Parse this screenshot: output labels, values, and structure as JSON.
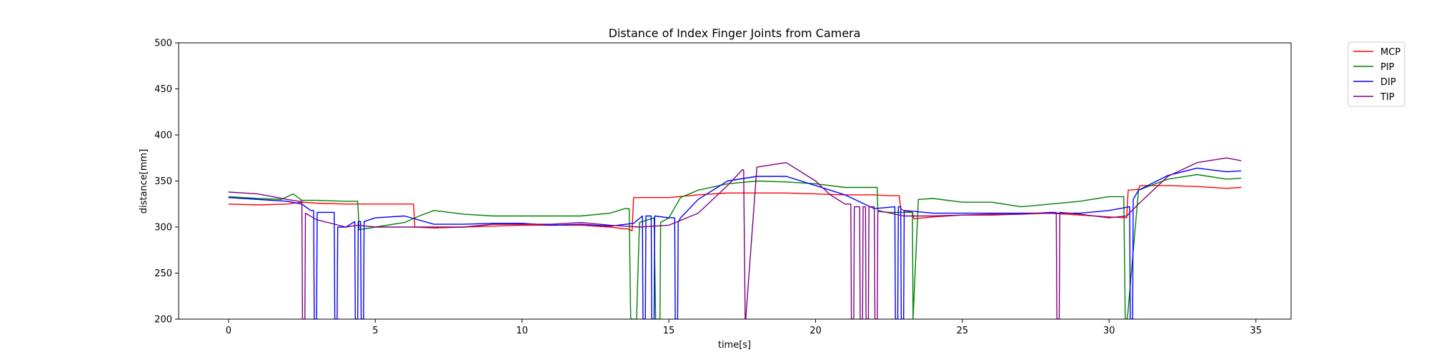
{
  "chart_data": {
    "type": "line",
    "title": "Distance of Index Finger Joints from Camera",
    "xlabel": "time[s]",
    "ylabel": "distance[mm]",
    "xlim": [
      -1.7,
      36.2
    ],
    "ylim": [
      200,
      500
    ],
    "xticks": [
      0,
      5,
      10,
      15,
      20,
      25,
      30,
      35
    ],
    "yticks": [
      200,
      250,
      300,
      350,
      400,
      450,
      500
    ],
    "grid": false,
    "legend_position": "outside-top-right",
    "series": [
      {
        "name": "MCP",
        "color": "#ff0000",
        "x": [
          0,
          1,
          2,
          2.5,
          3,
          4,
          5,
          6,
          6.3,
          6.35,
          7,
          8,
          9,
          10,
          11,
          12,
          13,
          13.5,
          13.6,
          13.75,
          13.8,
          14.5,
          15,
          16,
          17,
          18,
          19,
          20,
          21,
          22,
          22.5,
          22.85,
          22.9,
          23,
          23.3,
          23.35,
          24,
          25,
          26,
          27,
          28,
          29,
          30,
          30.6,
          30.65,
          31,
          31.05,
          32,
          33,
          34,
          34.5
        ],
        "y": [
          325,
          324,
          325,
          327,
          326,
          325,
          325,
          325,
          325,
          300,
          299,
          300,
          301,
          302,
          302,
          302,
          300,
          298,
          298,
          296,
          332,
          332,
          332,
          335,
          337,
          337,
          337,
          336,
          335,
          335,
          334,
          334,
          320,
          318,
          316,
          309,
          311,
          313,
          314,
          314,
          315,
          313,
          311,
          310,
          340,
          341,
          345,
          345,
          344,
          342,
          343
        ]
      },
      {
        "name": "PIP",
        "color": "#008000",
        "x": [
          0,
          1,
          1.8,
          2.2,
          2.5,
          3,
          4,
          4.4,
          4.45,
          5,
          6,
          6.5,
          7,
          8,
          9,
          10,
          11,
          12,
          13,
          13.5,
          13.65,
          13.7,
          13.72,
          13.9,
          14.0,
          14.5,
          14.55,
          14.6,
          14.7,
          14.72,
          15,
          15.4,
          16,
          17,
          18,
          19,
          20,
          21,
          22,
          22.1,
          22.12,
          22.5,
          23,
          23.3,
          23.32,
          23.5,
          24,
          25,
          26,
          27,
          28,
          29,
          30,
          30.5,
          30.55,
          30.6,
          30.62,
          31,
          32,
          33,
          34,
          34.5
        ],
        "y": [
          333,
          331,
          330,
          336,
          329,
          329,
          328,
          328,
          297,
          300,
          305,
          312,
          318,
          314,
          312,
          312,
          312,
          312,
          315,
          320,
          320,
          200,
          200,
          200,
          305,
          310,
          200,
          200,
          200,
          305,
          310,
          332,
          340,
          347,
          350,
          349,
          347,
          343,
          343,
          343,
          317,
          316,
          316,
          316,
          200,
          330,
          331,
          327,
          327,
          322,
          325,
          328,
          333,
          333,
          200,
          200,
          200,
          340,
          352,
          357,
          352,
          353
        ]
      },
      {
        "name": "DIP",
        "color": "#0000ff",
        "x": [
          0,
          1,
          2,
          2.5,
          2.8,
          2.9,
          2.92,
          3.0,
          3.02,
          3.5,
          3.6,
          3.62,
          3.7,
          3.72,
          4.0,
          4.3,
          4.32,
          4.4,
          4.42,
          4.5,
          4.52,
          4.6,
          4.62,
          5,
          6,
          7,
          8,
          9,
          10,
          11,
          12,
          13,
          13.8,
          14.1,
          14.12,
          14.2,
          14.22,
          14.4,
          14.42,
          14.5,
          14.52,
          15.0,
          15.2,
          15.22,
          15.3,
          15.32,
          15.4,
          16,
          17,
          18,
          19,
          20,
          21,
          22,
          22.7,
          22.72,
          22.8,
          22.82,
          22.9,
          22.92,
          23.0,
          23.02,
          24,
          25,
          26,
          27,
          28,
          29,
          30,
          30.7,
          30.72,
          30.8,
          30.82,
          31,
          32,
          33,
          34,
          34.5
        ],
        "y": [
          332,
          330,
          328,
          325,
          318,
          318,
          200,
          200,
          316,
          316,
          316,
          200,
          200,
          300,
          300,
          306,
          200,
          200,
          306,
          306,
          200,
          200,
          306,
          310,
          312,
          303,
          303,
          304,
          304,
          302,
          303,
          301,
          304,
          312,
          200,
          200,
          312,
          312,
          200,
          200,
          312,
          310,
          310,
          200,
          200,
          305,
          310,
          330,
          350,
          355,
          355,
          345,
          335,
          320,
          322,
          200,
          200,
          322,
          322,
          200,
          200,
          318,
          315,
          315,
          315,
          315,
          315,
          315,
          318,
          322,
          200,
          200,
          330,
          340,
          356,
          364,
          360,
          361
        ]
      },
      {
        "name": "TIP",
        "color": "#800080",
        "x": [
          0,
          1,
          2,
          2.4,
          2.5,
          2.52,
          2.6,
          2.62,
          3,
          4,
          4.4,
          5,
          6,
          7,
          8,
          9,
          10,
          11,
          12,
          13,
          14,
          15,
          16,
          17,
          17.5,
          17.55,
          17.6,
          17.62,
          18,
          19,
          20,
          20.5,
          21,
          21.2,
          21.22,
          21.3,
          21.32,
          21.5,
          21.52,
          21.6,
          21.62,
          21.7,
          21.72,
          21.8,
          21.82,
          22,
          22.02,
          22.1,
          22.12,
          23,
          24,
          25,
          26,
          27,
          28,
          28.2,
          28.22,
          28.3,
          28.32,
          29,
          30,
          30.6,
          31,
          32,
          33,
          34,
          34.5
        ],
        "y": [
          338,
          336,
          330,
          328,
          328,
          200,
          200,
          315,
          308,
          300,
          302,
          300,
          300,
          300,
          300,
          303,
          303,
          303,
          305,
          302,
          300,
          302,
          315,
          345,
          362,
          362,
          200,
          200,
          365,
          370,
          350,
          335,
          325,
          325,
          200,
          200,
          322,
          322,
          200,
          200,
          322,
          322,
          200,
          200,
          322,
          322,
          200,
          200,
          318,
          312,
          312,
          313,
          313,
          314,
          316,
          316,
          200,
          200,
          316,
          314,
          310,
          312,
          325,
          355,
          370,
          375,
          372
        ]
      }
    ]
  }
}
